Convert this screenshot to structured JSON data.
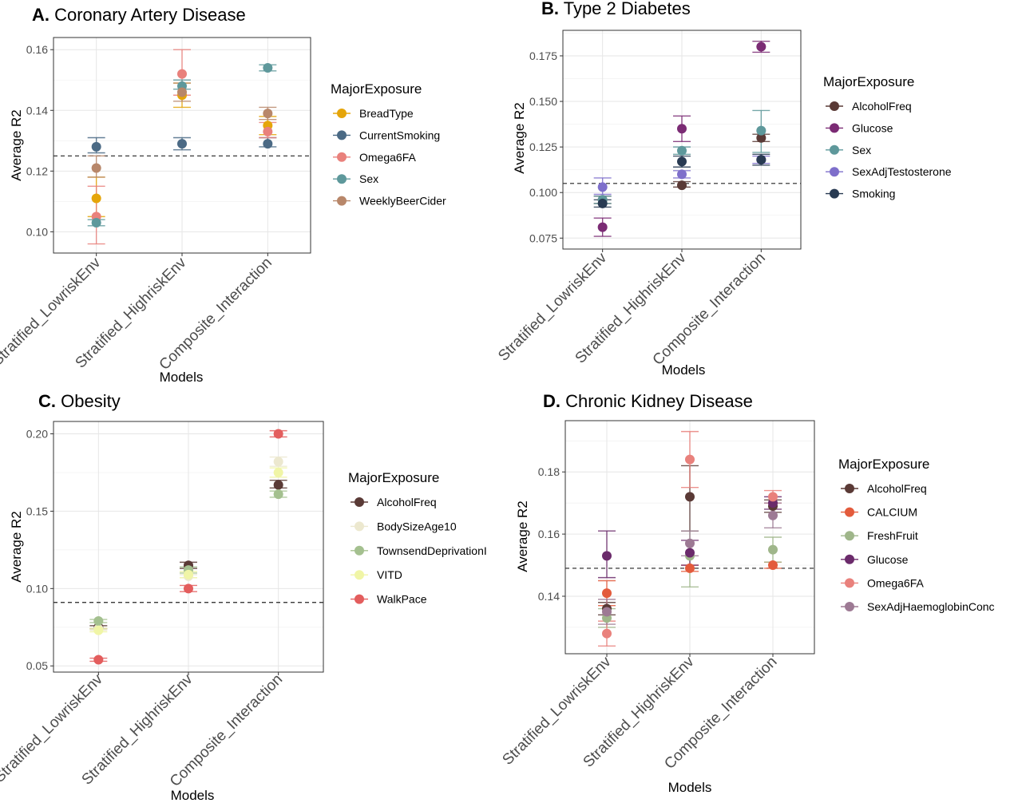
{
  "figure": {
    "xlabel": "Models",
    "ylabel": "Average R2",
    "legend_title": "MajorExposure"
  },
  "chart_data": [
    {
      "type": "scatter",
      "letter": "A.",
      "title": "Coronary Artery Disease",
      "categories": [
        "Stratified_LowriskEnv",
        "Stratified_HighriskEnv",
        "Composite_Interaction"
      ],
      "xlabel": "Models",
      "ylabel": "Average R2",
      "ylim": [
        0.093,
        0.164
      ],
      "yticks": [
        0.1,
        0.12,
        0.14,
        0.16
      ],
      "ytick_labels": [
        "0.10",
        "0.12",
        "0.14",
        "0.16"
      ],
      "reference_line": 0.125,
      "legend_title": "MajorExposure",
      "legend_position": "right",
      "grid": true,
      "series": [
        {
          "name": "BreadType",
          "color": "#e5a50a",
          "values": [
            0.111,
            0.145,
            0.135
          ],
          "lower": [
            0.105,
            0.141,
            0.132
          ],
          "upper": [
            0.118,
            0.149,
            0.138
          ]
        },
        {
          "name": "CurrentSmoking",
          "color": "#4b6a85",
          "values": [
            0.128,
            0.129,
            0.129
          ],
          "lower": [
            0.126,
            0.127,
            0.128
          ],
          "upper": [
            0.131,
            0.131,
            0.131
          ]
        },
        {
          "name": "Omega6FA",
          "color": "#e9817c",
          "values": [
            0.105,
            0.152,
            0.133
          ],
          "lower": [
            0.096,
            0.145,
            0.131
          ],
          "upper": [
            0.115,
            0.16,
            0.136
          ]
        },
        {
          "name": "Sex",
          "color": "#5e989b",
          "values": [
            0.103,
            0.148,
            0.154
          ],
          "lower": [
            0.102,
            0.147,
            0.153
          ],
          "upper": [
            0.104,
            0.15,
            0.155
          ]
        },
        {
          "name": "WeeklyBeerCider",
          "color": "#b8876a",
          "values": [
            0.121,
            0.146,
            0.139
          ],
          "lower": [
            0.118,
            0.143,
            0.137
          ],
          "upper": [
            0.125,
            0.149,
            0.141
          ]
        }
      ]
    },
    {
      "type": "scatter",
      "letter": "B.",
      "title": "Type 2 Diabetes",
      "categories": [
        "Stratified_LowriskEnv",
        "Stratified_HighriskEnv",
        "Composite_Interaction"
      ],
      "xlabel": "Models",
      "ylabel": "Average R2",
      "ylim": [
        0.069,
        0.189
      ],
      "yticks": [
        0.075,
        0.1,
        0.125,
        0.15,
        0.175
      ],
      "ytick_labels": [
        "0.075",
        "0.100",
        "0.125",
        "0.150",
        "0.175"
      ],
      "reference_line": 0.105,
      "legend_title": "MajorExposure",
      "legend_position": "right",
      "grid": true,
      "series": [
        {
          "name": "AlcoholFreq",
          "color": "#5a3a36",
          "values": [
            0.096,
            0.104,
            0.13
          ],
          "lower": [
            0.094,
            0.103,
            0.128
          ],
          "upper": [
            0.098,
            0.106,
            0.132
          ]
        },
        {
          "name": "Glucose",
          "color": "#7b2b74",
          "values": [
            0.081,
            0.135,
            0.18
          ],
          "lower": [
            0.076,
            0.128,
            0.177
          ],
          "upper": [
            0.086,
            0.142,
            0.183
          ]
        },
        {
          "name": "Sex",
          "color": "#5e989b",
          "values": [
            0.096,
            0.123,
            0.134
          ],
          "lower": [
            0.094,
            0.121,
            0.122
          ],
          "upper": [
            0.098,
            0.125,
            0.145
          ]
        },
        {
          "name": "SexAdjTestosterone",
          "color": "#7e6fcb",
          "values": [
            0.103,
            0.11,
            0.118
          ],
          "lower": [
            0.099,
            0.108,
            0.116
          ],
          "upper": [
            0.108,
            0.112,
            0.12
          ]
        },
        {
          "name": "Smoking",
          "color": "#283a52",
          "values": [
            0.094,
            0.117,
            0.118
          ],
          "lower": [
            0.092,
            0.114,
            0.115
          ],
          "upper": [
            0.096,
            0.12,
            0.121
          ]
        }
      ]
    },
    {
      "type": "scatter",
      "letter": "C.",
      "title": "Obesity",
      "categories": [
        "Stratified_LowriskEnv",
        "Stratified_HighriskEnv",
        "Composite_Interaction"
      ],
      "xlabel": "Models",
      "ylabel": "Average R2",
      "ylim": [
        0.046,
        0.208
      ],
      "yticks": [
        0.05,
        0.1,
        0.15,
        0.2
      ],
      "ytick_labels": [
        "0.05",
        "0.10",
        "0.15",
        "0.20"
      ],
      "reference_line": 0.091,
      "legend_title": "MajorExposure",
      "legend_position": "right",
      "grid": true,
      "series": [
        {
          "name": "AlcoholFreq",
          "color": "#5a3a36",
          "values": [
            0.075,
            0.115,
            0.167
          ],
          "lower": [
            0.074,
            0.113,
            0.165
          ],
          "upper": [
            0.076,
            0.117,
            0.17
          ]
        },
        {
          "name": "BodySizeAge10",
          "color": "#ece8cf",
          "values": [
            0.074,
            0.108,
            0.182
          ],
          "lower": [
            0.073,
            0.107,
            0.179
          ],
          "upper": [
            0.075,
            0.109,
            0.185
          ]
        },
        {
          "name": "TownsendDeprivationI",
          "color": "#a4c08f",
          "values": [
            0.079,
            0.112,
            0.161
          ],
          "lower": [
            0.078,
            0.11,
            0.159
          ],
          "upper": [
            0.08,
            0.114,
            0.163
          ]
        },
        {
          "name": "VITD",
          "color": "#f0f5a6",
          "values": [
            0.073,
            0.109,
            0.175
          ],
          "lower": [
            0.072,
            0.107,
            0.172
          ],
          "upper": [
            0.074,
            0.111,
            0.178
          ]
        },
        {
          "name": "WalkPace",
          "color": "#e35d5d",
          "values": [
            0.054,
            0.1,
            0.2
          ],
          "lower": [
            0.053,
            0.098,
            0.198
          ],
          "upper": [
            0.055,
            0.102,
            0.202
          ]
        }
      ]
    },
    {
      "type": "scatter",
      "letter": "D.",
      "title": "Chronic Kidney Disease",
      "categories": [
        "Stratified_LowriskEnv",
        "Stratified_HighriskEnv",
        "Composite_Interaction"
      ],
      "xlabel": "Models",
      "ylabel": "Average R2",
      "ylim": [
        0.1215,
        0.1965
      ],
      "yticks": [
        0.14,
        0.16,
        0.18
      ],
      "ytick_labels": [
        "0.14",
        "0.16",
        "0.18"
      ],
      "reference_line": 0.149,
      "legend_title": "MajorExposure",
      "legend_position": "right",
      "grid": true,
      "series": [
        {
          "name": "AlcoholFreq",
          "color": "#5a3a36",
          "values": [
            0.136,
            0.172,
            0.169
          ],
          "lower": [
            0.134,
            0.161,
            0.167
          ],
          "upper": [
            0.138,
            0.182,
            0.171
          ]
        },
        {
          "name": "CALCIUM",
          "color": "#e35b3c",
          "values": [
            0.141,
            0.149,
            0.15
          ],
          "lower": [
            0.137,
            0.148,
            0.149
          ],
          "upper": [
            0.145,
            0.15,
            0.151
          ]
        },
        {
          "name": "FreshFruit",
          "color": "#9fb68a",
          "values": [
            0.133,
            0.153,
            0.155
          ],
          "lower": [
            0.13,
            0.143,
            0.151
          ],
          "upper": [
            0.136,
            0.161,
            0.159
          ]
        },
        {
          "name": "Glucose",
          "color": "#6b2b6b",
          "values": [
            0.153,
            0.154,
            0.17
          ],
          "lower": [
            0.146,
            0.15,
            0.168
          ],
          "upper": [
            0.161,
            0.158,
            0.172
          ]
        },
        {
          "name": "Omega6FA",
          "color": "#e9817c",
          "values": [
            0.128,
            0.184,
            0.172
          ],
          "lower": [
            0.124,
            0.175,
            0.17
          ],
          "upper": [
            0.132,
            0.193,
            0.174
          ]
        },
        {
          "name": "SexAdjHaemoglobinConc",
          "color": "#9d7a94",
          "values": [
            0.135,
            0.157,
            0.166
          ],
          "lower": [
            0.131,
            0.153,
            0.162
          ],
          "upper": [
            0.139,
            0.161,
            0.17
          ]
        }
      ]
    }
  ]
}
